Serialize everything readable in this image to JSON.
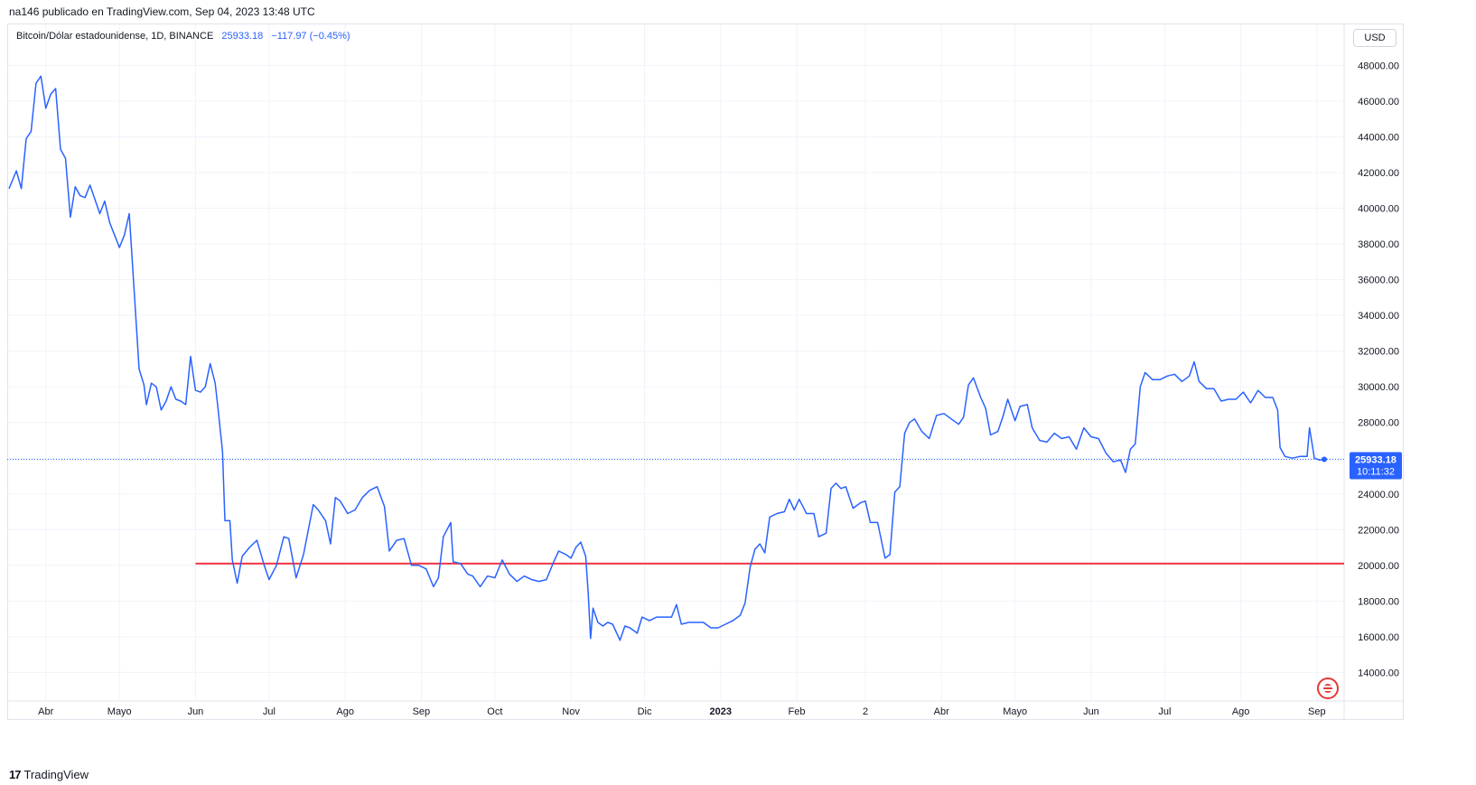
{
  "header": {
    "published": "na146 publicado en TradingView.com, Sep 04, 2023 13:48 UTC"
  },
  "symbol": {
    "name": "Bitcoin/Dólar estadounidense, 1D, BINANCE",
    "last": "25933.18",
    "change": "−117.97 (−0.45%)"
  },
  "currency": "USD",
  "price_label": {
    "value": "25933.18",
    "countdown": "10:11:32"
  },
  "footer": {
    "brand": "TradingView"
  },
  "colors": {
    "line": "#2962ff",
    "support": "#f23645",
    "grid": "#f0f3fa"
  },
  "chart_data": {
    "type": "line",
    "y_ticks": [
      14000,
      16000,
      18000,
      20000,
      22000,
      24000,
      26000,
      28000,
      30000,
      32000,
      34000,
      36000,
      38000,
      40000,
      42000,
      44000,
      46000,
      48000
    ],
    "y_tick_labels": [
      "14000.00",
      "16000.00",
      "18000.00",
      "20000.00",
      "22000.00",
      "24000.00",
      "26000.00",
      "28000.00",
      "30000.00",
      "32000.00",
      "34000.00",
      "36000.00",
      "38000.00",
      "40000.00",
      "42000.00",
      "44000.00",
      "46000.00",
      "48000.00"
    ],
    "hidden_tick_labels": [
      "26000.00"
    ],
    "ylim": [
      12400,
      50300
    ],
    "x_labels": [
      {
        "date": "2022-04-01",
        "label": "Abr",
        "bold": false
      },
      {
        "date": "2022-05-01",
        "label": "Mayo",
        "bold": false
      },
      {
        "date": "2022-06-01",
        "label": "Jun",
        "bold": false
      },
      {
        "date": "2022-07-01",
        "label": "Jul",
        "bold": false
      },
      {
        "date": "2022-08-01",
        "label": "Ago",
        "bold": false
      },
      {
        "date": "2022-09-01",
        "label": "Sep",
        "bold": false
      },
      {
        "date": "2022-10-01",
        "label": "Oct",
        "bold": false
      },
      {
        "date": "2022-11-01",
        "label": "Nov",
        "bold": false
      },
      {
        "date": "2022-12-01",
        "label": "Dic",
        "bold": false
      },
      {
        "date": "2023-01-01",
        "label": "2023",
        "bold": true
      },
      {
        "date": "2023-02-01",
        "label": "Feb",
        "bold": false
      },
      {
        "date": "2023-03-01",
        "label": "2",
        "bold": false
      },
      {
        "date": "2023-04-01",
        "label": "Abr",
        "bold": false
      },
      {
        "date": "2023-05-01",
        "label": "Mayo",
        "bold": false
      },
      {
        "date": "2023-06-01",
        "label": "Jun",
        "bold": false
      },
      {
        "date": "2023-07-01",
        "label": "Jul",
        "bold": false
      },
      {
        "date": "2023-08-01",
        "label": "Ago",
        "bold": false
      },
      {
        "date": "2023-09-01",
        "label": "Sep",
        "bold": false
      }
    ],
    "series": [
      {
        "values": [
          [
            "2022-03-17",
            41100
          ],
          [
            "2022-03-20",
            42100
          ],
          [
            "2022-03-22",
            41100
          ],
          [
            "2022-03-24",
            43900
          ],
          [
            "2022-03-26",
            44300
          ],
          [
            "2022-03-28",
            47000
          ],
          [
            "2022-03-30",
            47400
          ],
          [
            "2022-04-01",
            45600
          ],
          [
            "2022-04-03",
            46400
          ],
          [
            "2022-04-05",
            46700
          ],
          [
            "2022-04-07",
            43300
          ],
          [
            "2022-04-09",
            42800
          ],
          [
            "2022-04-11",
            39500
          ],
          [
            "2022-04-13",
            41200
          ],
          [
            "2022-04-15",
            40700
          ],
          [
            "2022-04-17",
            40600
          ],
          [
            "2022-04-19",
            41300
          ],
          [
            "2022-04-21",
            40500
          ],
          [
            "2022-04-23",
            39700
          ],
          [
            "2022-04-25",
            40400
          ],
          [
            "2022-04-27",
            39200
          ],
          [
            "2022-04-29",
            38500
          ],
          [
            "2022-05-01",
            37800
          ],
          [
            "2022-05-03",
            38500
          ],
          [
            "2022-05-05",
            39700
          ],
          [
            "2022-05-07",
            35400
          ],
          [
            "2022-05-09",
            31000
          ],
          [
            "2022-05-11",
            30100
          ],
          [
            "2022-05-12",
            29000
          ],
          [
            "2022-05-14",
            30200
          ],
          [
            "2022-05-16",
            30000
          ],
          [
            "2022-05-18",
            28700
          ],
          [
            "2022-05-20",
            29200
          ],
          [
            "2022-05-22",
            30000
          ],
          [
            "2022-05-24",
            29300
          ],
          [
            "2022-05-26",
            29200
          ],
          [
            "2022-05-28",
            29000
          ],
          [
            "2022-05-30",
            31700
          ],
          [
            "2022-06-01",
            29800
          ],
          [
            "2022-06-03",
            29700
          ],
          [
            "2022-06-05",
            30000
          ],
          [
            "2022-06-07",
            31300
          ],
          [
            "2022-06-09",
            30200
          ],
          [
            "2022-06-10",
            29000
          ],
          [
            "2022-06-12",
            26400
          ],
          [
            "2022-06-13",
            22500
          ],
          [
            "2022-06-15",
            22500
          ],
          [
            "2022-06-16",
            20300
          ],
          [
            "2022-06-18",
            19000
          ],
          [
            "2022-06-20",
            20500
          ],
          [
            "2022-06-23",
            21000
          ],
          [
            "2022-06-26",
            21400
          ],
          [
            "2022-06-29",
            20000
          ],
          [
            "2022-07-01",
            19200
          ],
          [
            "2022-07-04",
            20000
          ],
          [
            "2022-07-07",
            21600
          ],
          [
            "2022-07-09",
            21500
          ],
          [
            "2022-07-12",
            19300
          ],
          [
            "2022-07-15",
            20600
          ],
          [
            "2022-07-19",
            23400
          ],
          [
            "2022-07-21",
            23100
          ],
          [
            "2022-07-24",
            22500
          ],
          [
            "2022-07-26",
            21200
          ],
          [
            "2022-07-28",
            23800
          ],
          [
            "2022-07-30",
            23600
          ],
          [
            "2022-08-02",
            22900
          ],
          [
            "2022-08-05",
            23100
          ],
          [
            "2022-08-08",
            23800
          ],
          [
            "2022-08-11",
            24200
          ],
          [
            "2022-08-14",
            24400
          ],
          [
            "2022-08-17",
            23300
          ],
          [
            "2022-08-19",
            20800
          ],
          [
            "2022-08-22",
            21400
          ],
          [
            "2022-08-25",
            21500
          ],
          [
            "2022-08-28",
            20000
          ],
          [
            "2022-08-31",
            20000
          ],
          [
            "2022-09-03",
            19800
          ],
          [
            "2022-09-06",
            18800
          ],
          [
            "2022-09-08",
            19300
          ],
          [
            "2022-09-10",
            21600
          ],
          [
            "2022-09-13",
            22400
          ],
          [
            "2022-09-14",
            20200
          ],
          [
            "2022-09-17",
            20100
          ],
          [
            "2022-09-20",
            19500
          ],
          [
            "2022-09-22",
            19400
          ],
          [
            "2022-09-25",
            18800
          ],
          [
            "2022-09-28",
            19400
          ],
          [
            "2022-10-01",
            19300
          ],
          [
            "2022-10-04",
            20300
          ],
          [
            "2022-10-07",
            19500
          ],
          [
            "2022-10-10",
            19100
          ],
          [
            "2022-10-13",
            19400
          ],
          [
            "2022-10-16",
            19200
          ],
          [
            "2022-10-19",
            19100
          ],
          [
            "2022-10-22",
            19200
          ],
          [
            "2022-10-25",
            20200
          ],
          [
            "2022-10-27",
            20800
          ],
          [
            "2022-10-30",
            20600
          ],
          [
            "2022-11-01",
            20400
          ],
          [
            "2022-11-03",
            21000
          ],
          [
            "2022-11-05",
            21300
          ],
          [
            "2022-11-07",
            20500
          ],
          [
            "2022-11-08",
            18500
          ],
          [
            "2022-11-09",
            15900
          ],
          [
            "2022-11-10",
            17600
          ],
          [
            "2022-11-12",
            16800
          ],
          [
            "2022-11-14",
            16600
          ],
          [
            "2022-11-16",
            16800
          ],
          [
            "2022-11-18",
            16700
          ],
          [
            "2022-11-21",
            15800
          ],
          [
            "2022-11-23",
            16600
          ],
          [
            "2022-11-25",
            16500
          ],
          [
            "2022-11-28",
            16200
          ],
          [
            "2022-11-30",
            17100
          ],
          [
            "2022-12-03",
            16900
          ],
          [
            "2022-12-06",
            17100
          ],
          [
            "2022-12-09",
            17100
          ],
          [
            "2022-12-12",
            17100
          ],
          [
            "2022-12-14",
            17800
          ],
          [
            "2022-12-16",
            16700
          ],
          [
            "2022-12-19",
            16800
          ],
          [
            "2022-12-22",
            16800
          ],
          [
            "2022-12-25",
            16800
          ],
          [
            "2022-12-28",
            16500
          ],
          [
            "2022-12-31",
            16500
          ],
          [
            "2023-01-03",
            16700
          ],
          [
            "2023-01-06",
            16900
          ],
          [
            "2023-01-09",
            17200
          ],
          [
            "2023-01-11",
            17900
          ],
          [
            "2023-01-13",
            19900
          ],
          [
            "2023-01-15",
            20900
          ],
          [
            "2023-01-17",
            21200
          ],
          [
            "2023-01-19",
            20700
          ],
          [
            "2023-01-21",
            22700
          ],
          [
            "2023-01-24",
            22900
          ],
          [
            "2023-01-27",
            23000
          ],
          [
            "2023-01-29",
            23700
          ],
          [
            "2023-01-31",
            23100
          ],
          [
            "2023-02-02",
            23700
          ],
          [
            "2023-02-05",
            22900
          ],
          [
            "2023-02-08",
            22900
          ],
          [
            "2023-02-10",
            21600
          ],
          [
            "2023-02-13",
            21800
          ],
          [
            "2023-02-15",
            24300
          ],
          [
            "2023-02-17",
            24600
          ],
          [
            "2023-02-19",
            24300
          ],
          [
            "2023-02-21",
            24400
          ],
          [
            "2023-02-24",
            23200
          ],
          [
            "2023-02-27",
            23500
          ],
          [
            "2023-03-01",
            23600
          ],
          [
            "2023-03-03",
            22400
          ],
          [
            "2023-03-06",
            22400
          ],
          [
            "2023-03-09",
            20400
          ],
          [
            "2023-03-11",
            20600
          ],
          [
            "2023-03-13",
            24100
          ],
          [
            "2023-03-15",
            24400
          ],
          [
            "2023-03-17",
            27400
          ],
          [
            "2023-03-19",
            28000
          ],
          [
            "2023-03-21",
            28200
          ],
          [
            "2023-03-24",
            27500
          ],
          [
            "2023-03-27",
            27100
          ],
          [
            "2023-03-30",
            28400
          ],
          [
            "2023-04-02",
            28500
          ],
          [
            "2023-04-05",
            28200
          ],
          [
            "2023-04-08",
            27900
          ],
          [
            "2023-04-10",
            28300
          ],
          [
            "2023-04-12",
            30100
          ],
          [
            "2023-04-14",
            30500
          ],
          [
            "2023-04-17",
            29400
          ],
          [
            "2023-04-19",
            28800
          ],
          [
            "2023-04-21",
            27300
          ],
          [
            "2023-04-24",
            27500
          ],
          [
            "2023-04-26",
            28300
          ],
          [
            "2023-04-28",
            29300
          ],
          [
            "2023-05-01",
            28100
          ],
          [
            "2023-05-03",
            28900
          ],
          [
            "2023-05-06",
            29000
          ],
          [
            "2023-05-08",
            27700
          ],
          [
            "2023-05-11",
            27000
          ],
          [
            "2023-05-14",
            26900
          ],
          [
            "2023-05-17",
            27400
          ],
          [
            "2023-05-20",
            27100
          ],
          [
            "2023-05-23",
            27200
          ],
          [
            "2023-05-26",
            26500
          ],
          [
            "2023-05-29",
            27700
          ],
          [
            "2023-06-01",
            27200
          ],
          [
            "2023-06-04",
            27100
          ],
          [
            "2023-06-07",
            26300
          ],
          [
            "2023-06-10",
            25800
          ],
          [
            "2023-06-13",
            25900
          ],
          [
            "2023-06-15",
            25200
          ],
          [
            "2023-06-17",
            26500
          ],
          [
            "2023-06-19",
            26800
          ],
          [
            "2023-06-21",
            30000
          ],
          [
            "2023-06-23",
            30800
          ],
          [
            "2023-06-26",
            30400
          ],
          [
            "2023-06-29",
            30400
          ],
          [
            "2023-07-02",
            30600
          ],
          [
            "2023-07-05",
            30700
          ],
          [
            "2023-07-08",
            30300
          ],
          [
            "2023-07-11",
            30600
          ],
          [
            "2023-07-13",
            31400
          ],
          [
            "2023-07-15",
            30300
          ],
          [
            "2023-07-18",
            29900
          ],
          [
            "2023-07-21",
            29900
          ],
          [
            "2023-07-24",
            29200
          ],
          [
            "2023-07-27",
            29300
          ],
          [
            "2023-07-30",
            29300
          ],
          [
            "2023-08-02",
            29700
          ],
          [
            "2023-08-05",
            29100
          ],
          [
            "2023-08-08",
            29800
          ],
          [
            "2023-08-11",
            29400
          ],
          [
            "2023-08-14",
            29400
          ],
          [
            "2023-08-16",
            28700
          ],
          [
            "2023-08-17",
            26600
          ],
          [
            "2023-08-19",
            26100
          ],
          [
            "2023-08-22",
            26000
          ],
          [
            "2023-08-25",
            26100
          ],
          [
            "2023-08-28",
            26100
          ],
          [
            "2023-08-29",
            27700
          ],
          [
            "2023-08-31",
            26000
          ],
          [
            "2023-09-02",
            25900
          ],
          [
            "2023-09-04",
            25933
          ]
        ]
      }
    ],
    "support_level": {
      "value": 20100,
      "from": "2022-06-01",
      "to": "2023-09-12"
    },
    "last_value": 25933.18
  }
}
